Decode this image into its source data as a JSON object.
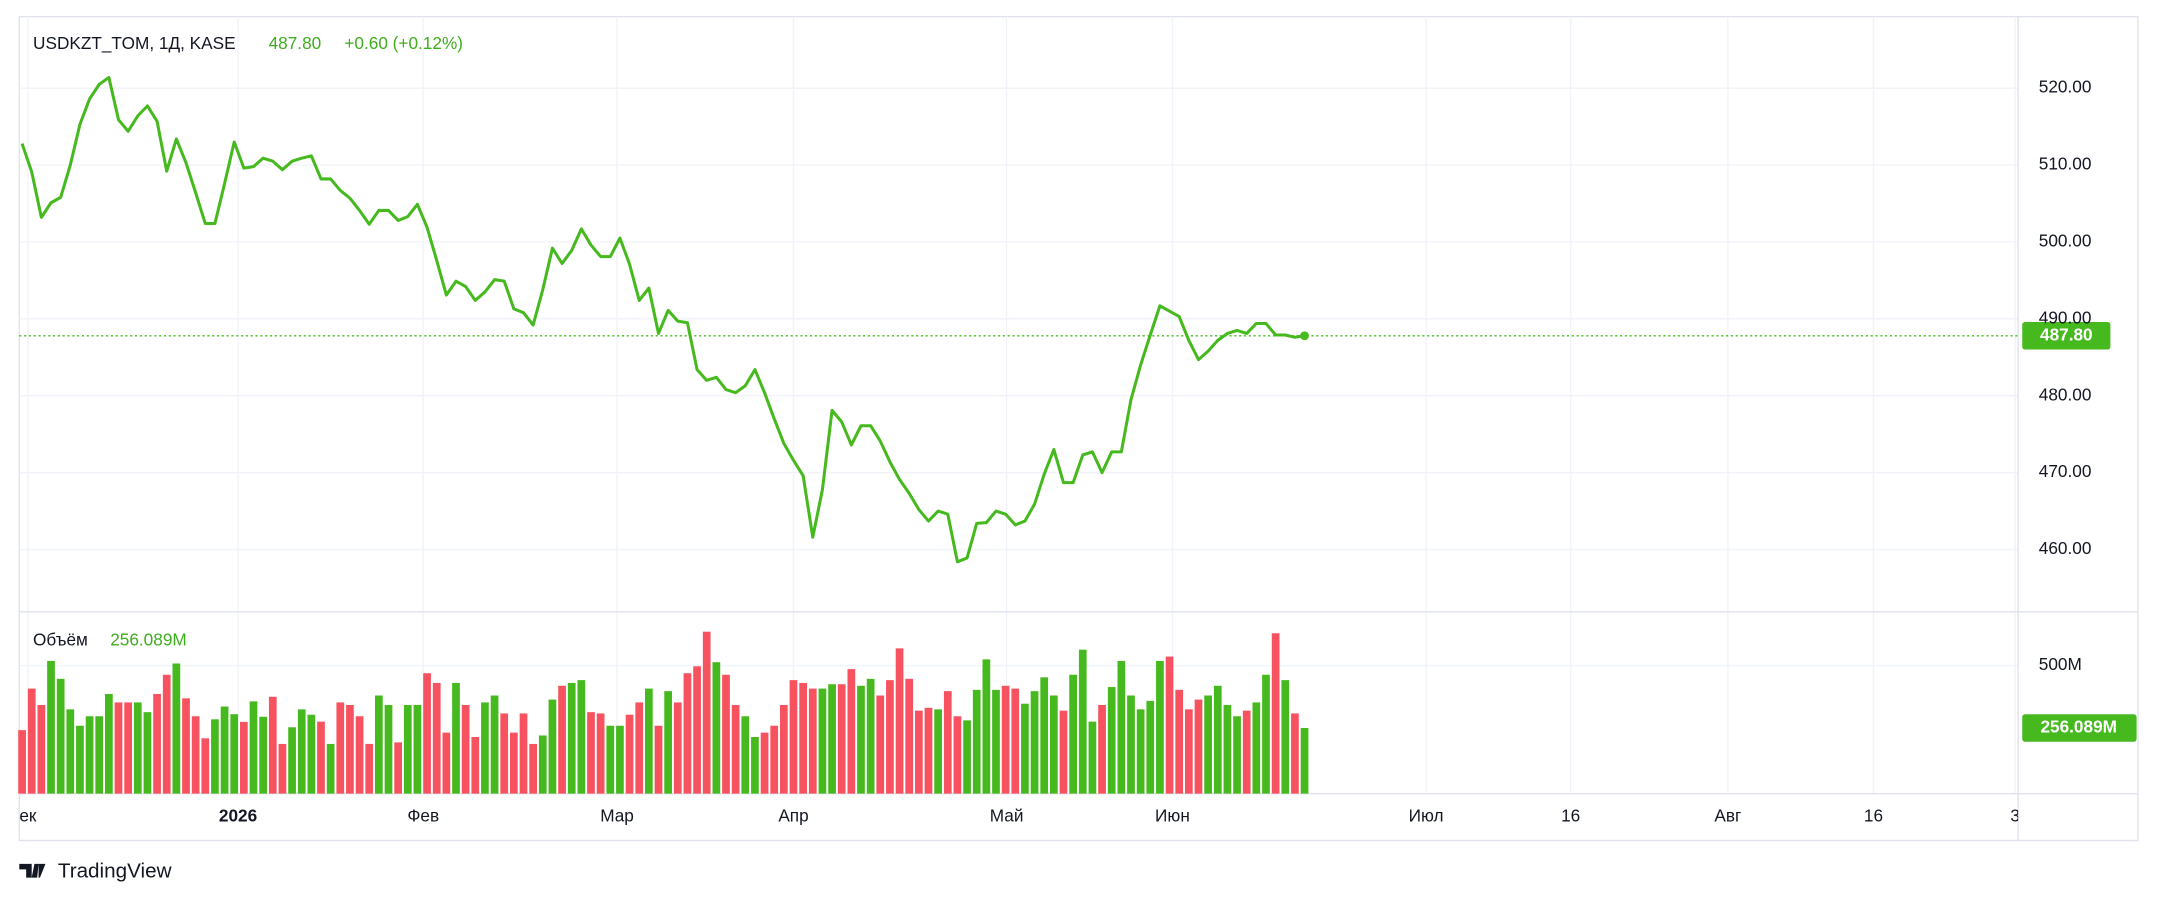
{
  "chart_data": [
    {
      "type": "line",
      "title": "USDKZT_TOM, 1Д, KASE",
      "last_label": "487.80",
      "change_label": "+0.60 (+0.12%)",
      "color": "#46b91e",
      "values": [
        512.8,
        509.1,
        503.2,
        505.1,
        505.8,
        510.0,
        515.3,
        518.6,
        520.5,
        521.4,
        515.9,
        514.4,
        516.4,
        517.7,
        515.7,
        509.2,
        513.4,
        510.3,
        506.4,
        502.4,
        502.4,
        507.6,
        513.0,
        509.6,
        509.8,
        510.9,
        510.5,
        509.4,
        510.5,
        510.9,
        511.2,
        508.2,
        508.2,
        506.7,
        505.7,
        504.1,
        502.3,
        504.1,
        504.1,
        502.8,
        503.3,
        504.9,
        501.9,
        497.6,
        493.1,
        494.9,
        494.2,
        492.4,
        493.5,
        495.1,
        494.9,
        491.3,
        490.8,
        489.2,
        493.8,
        499.2,
        497.2,
        498.9,
        501.7,
        499.6,
        498.1,
        498.1,
        500.5,
        497.1,
        492.4,
        494.0,
        488.1,
        491.1,
        489.7,
        489.5,
        483.4,
        482.0,
        482.4,
        480.8,
        480.4,
        481.3,
        483.4,
        480.4,
        477.0,
        473.8,
        471.6,
        469.6,
        461.6,
        467.8,
        478.1,
        476.6,
        473.6,
        476.1,
        476.1,
        474.1,
        471.4,
        469.1,
        467.3,
        465.2,
        463.7,
        465.0,
        464.6,
        458.4,
        458.9,
        463.4,
        463.5,
        465.0,
        464.6,
        463.2,
        463.7,
        465.9,
        469.8,
        473.0,
        468.7,
        468.7,
        472.3,
        472.7,
        470.0,
        472.7,
        472.7,
        479.5,
        484.0,
        487.9,
        491.7,
        491.0,
        490.3,
        487.2,
        484.7,
        485.8,
        487.2,
        488.1,
        488.5,
        488.1,
        489.4,
        489.4,
        487.9,
        487.9,
        487.6,
        487.8
      ],
      "xlim": [
        -0.29,
        207
      ],
      "ylim": [
        451.9,
        529.3
      ],
      "yticks": [
        {
          "value": 460,
          "label": "460.00"
        },
        {
          "value": 470,
          "label": "470.00"
        },
        {
          "value": 480,
          "label": "480.00"
        },
        {
          "value": 490,
          "label": "490.00"
        },
        {
          "value": 500,
          "label": "500.00"
        },
        {
          "value": 510,
          "label": "510.00"
        },
        {
          "value": 520,
          "label": "520.00"
        }
      ],
      "grid": true
    },
    {
      "type": "bar",
      "title": "Объём",
      "last_label": "256.089M",
      "up_color": "#46b91e",
      "down_color": "#f7525f",
      "values": [
        248,
        410,
        346,
        518,
        448,
        329,
        265,
        302,
        302,
        389,
        356,
        356,
        356,
        318,
        389,
        464,
        508,
        372,
        302,
        216,
        290,
        340,
        310,
        280,
        360,
        300,
        378,
        194,
        259,
        329,
        308,
        281,
        194,
        356,
        346,
        302,
        194,
        383,
        346,
        200,
        346,
        346,
        470,
        432,
        238,
        432,
        346,
        221,
        356,
        383,
        313,
        238,
        313,
        194,
        227,
        367,
        421,
        432,
        443,
        318,
        313,
        265,
        265,
        308,
        356,
        410,
        265,
        400,
        356,
        470,
        497,
        632,
        513,
        464,
        346,
        302,
        221,
        238,
        265,
        346,
        443,
        432,
        410,
        410,
        427,
        427,
        486,
        421,
        448,
        383,
        443,
        567,
        448,
        324,
        335,
        329,
        400,
        302,
        286,
        405,
        524,
        405,
        421,
        410,
        351,
        400,
        454,
        383,
        324,
        464,
        562,
        281,
        346,
        416,
        518,
        383,
        329,
        362,
        518,
        535,
        405,
        329,
        367,
        383,
        421,
        346,
        302,
        324,
        356,
        464,
        626,
        443,
        313,
        256.089
      ],
      "xlim": [
        -0.29,
        207
      ],
      "ylim": [
        0,
        709.7
      ],
      "yticks": [
        {
          "value": 500,
          "label": "500M"
        }
      ],
      "xticks": [
        {
          "value": 0.6,
          "label": "ек"
        },
        {
          "value": 22.4,
          "label": "2026"
        },
        {
          "value": 41.6,
          "label": "Фев"
        },
        {
          "value": 61.7,
          "label": "Мар"
        },
        {
          "value": 80,
          "label": "Апр"
        },
        {
          "value": 102.1,
          "label": "Май"
        },
        {
          "value": 119.3,
          "label": "Июн"
        },
        {
          "value": 145.6,
          "label": "Июл"
        },
        {
          "value": 160.6,
          "label": "16"
        },
        {
          "value": 176.9,
          "label": "Авг"
        },
        {
          "value": 192,
          "label": "16"
        },
        {
          "value": 206.7,
          "label": "3"
        }
      ],
      "grid": true
    }
  ],
  "footer": "TradingView"
}
